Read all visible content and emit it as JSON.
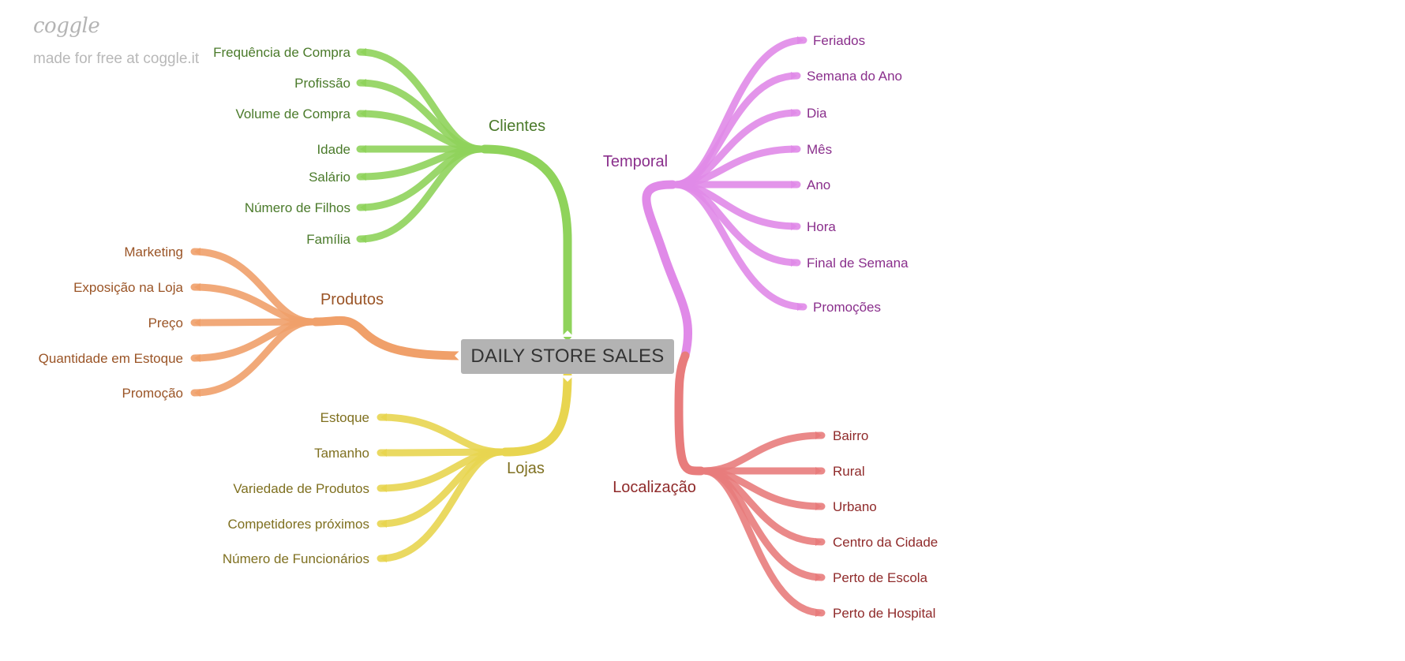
{
  "watermark": {
    "logo": "coggle",
    "note": "made for free at coggle.it"
  },
  "central": {
    "label": "DAILY STORE SALES"
  },
  "branches": [
    {
      "key": "clientes",
      "label": "Clientes",
      "color": "#8fd35b",
      "text_color": "#4a7a2a",
      "children": [
        "Frequência de Compra",
        "Profissão",
        "Volume de Compra",
        "Idade",
        "Salário",
        "Número de Filhos",
        "Família"
      ]
    },
    {
      "key": "produtos",
      "label": "Produtos",
      "color": "#f0a06a",
      "text_color": "#9a5426",
      "children": [
        "Marketing",
        "Exposição na Loja",
        "Preço",
        "Quantidade em Estoque",
        "Promoção"
      ]
    },
    {
      "key": "lojas",
      "label": "Lojas",
      "color": "#e8d550",
      "text_color": "#7f7020",
      "children": [
        "Estoque",
        "Tamanho",
        "Variedade de Produtos",
        "Competidores próximos",
        "Número de Funcionários"
      ]
    },
    {
      "key": "temporal",
      "label": "Temporal",
      "color": "#e08ae8",
      "text_color": "#8a2f8c",
      "children": [
        "Feriados",
        "Semana do Ano",
        "Dia",
        "Mês",
        "Ano",
        "Hora",
        "Final de Semana",
        "Promoções"
      ]
    },
    {
      "key": "localizacao",
      "label": "Localização",
      "color": "#e87c7c",
      "text_color": "#8f2a2a",
      "children": [
        "Bairro",
        "Rural",
        "Urbano",
        "Centro da Cidade",
        "Perto de Escola",
        "Perto de Hospital"
      ]
    }
  ]
}
